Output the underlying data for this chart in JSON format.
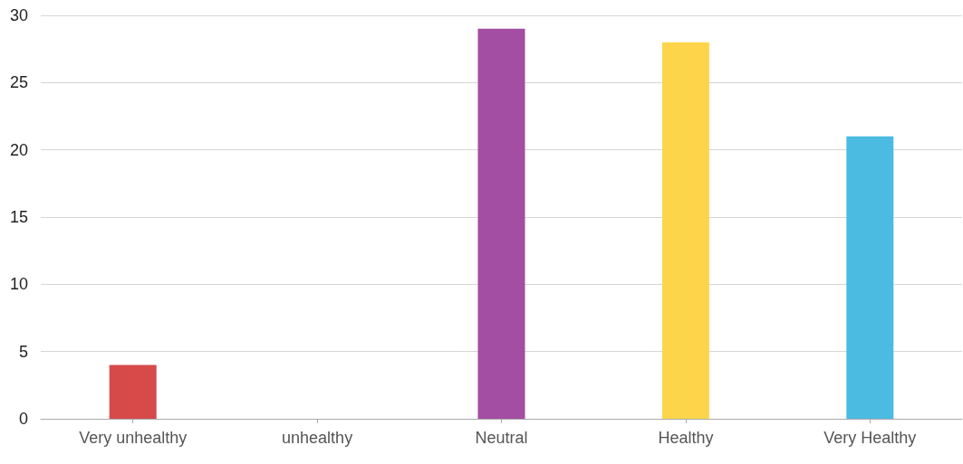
{
  "chart_data": {
    "type": "bar",
    "categories": [
      "Very unhealthy",
      "unhealthy",
      "Neutral",
      "Healthy",
      "Very Healthy"
    ],
    "values": [
      4,
      0,
      29,
      28,
      21
    ],
    "colors": [
      "#d64a4a",
      "#a34da3",
      "#a34da3",
      "#fdd54a",
      "#4cbbe1"
    ],
    "ylim": [
      0,
      30
    ],
    "yticks": [
      0,
      5,
      10,
      15,
      20,
      25,
      30
    ],
    "grid": "y"
  }
}
